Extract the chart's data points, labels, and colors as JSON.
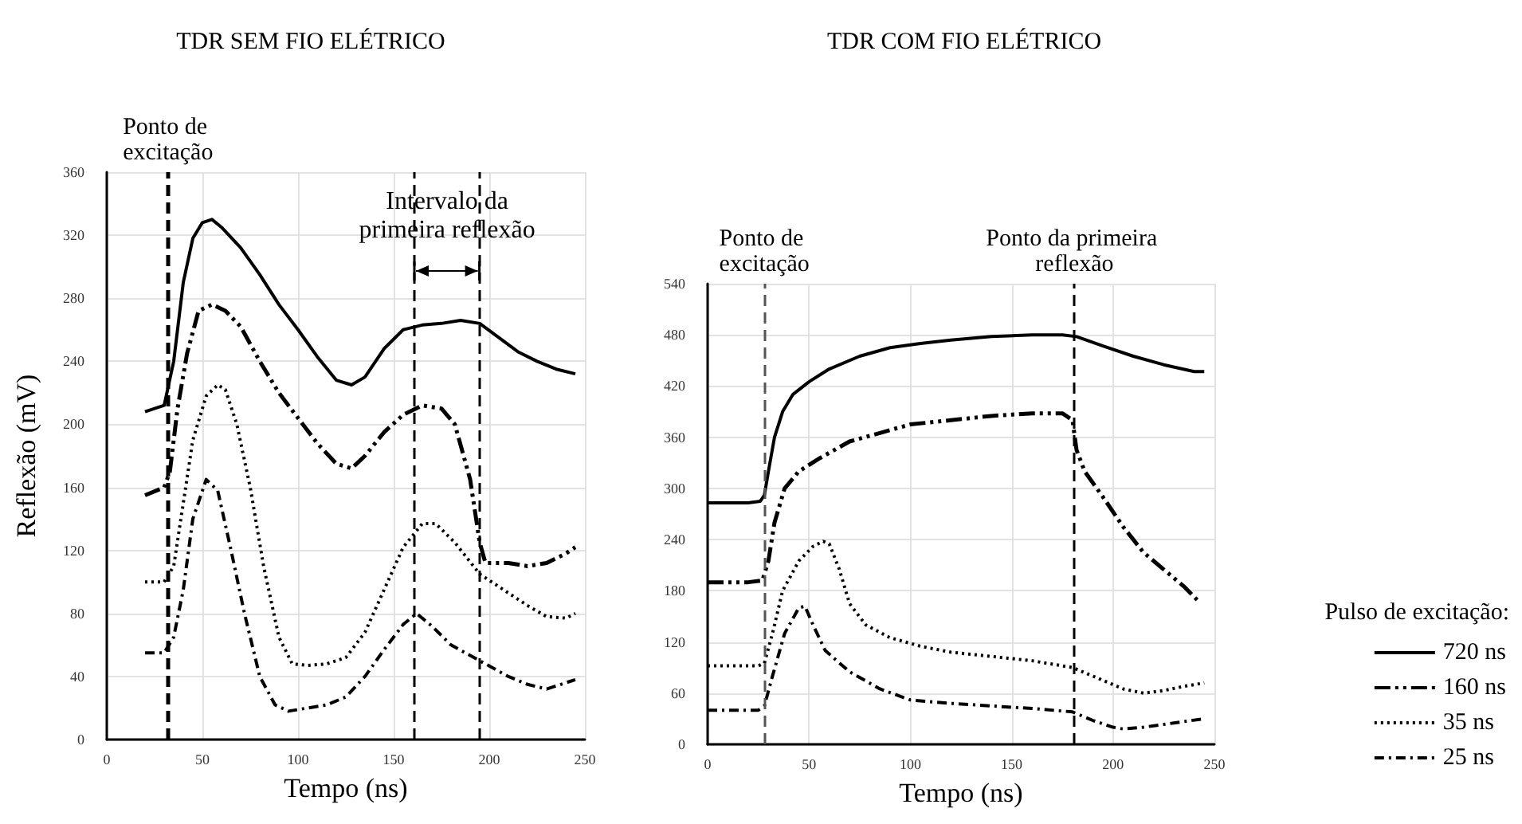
{
  "chart_data": [
    {
      "type": "line",
      "title": "TDR SEM FIO ELÉTRICO",
      "xlabel": "Tempo (ns)",
      "ylabel": "Reflexão (mV)",
      "xlim": [
        0,
        250
      ],
      "xticks": [
        0,
        50,
        100,
        150,
        200,
        250
      ],
      "ylim": [
        0,
        360
      ],
      "yticks": [
        0,
        40,
        80,
        120,
        160,
        200,
        240,
        280,
        320,
        360
      ],
      "grid": true,
      "legend": false,
      "marker": "none",
      "ref_lines": [
        {
          "axis": "x",
          "value": 32,
          "label": "Ponto de excitação",
          "color": "#000000",
          "line_style": "dashed"
        },
        {
          "axis": "x",
          "value": 161,
          "label": null,
          "color": "#000000",
          "line_style": "dashed"
        },
        {
          "axis": "x",
          "value": 195,
          "label": null,
          "color": "#000000",
          "line_style": "dashed"
        }
      ],
      "annotations": [
        "Intervalo da primeira reflexão"
      ],
      "series": [
        {
          "color": "#000000",
          "line_style": "solid",
          "x": [
            20,
            30,
            35,
            40,
            45,
            50,
            55,
            60,
            70,
            80,
            90,
            100,
            110,
            120,
            128,
            135,
            145,
            155,
            165,
            175,
            185,
            195,
            205,
            215,
            225,
            235,
            245
          ],
          "values": [
            208,
            212,
            240,
            290,
            318,
            328,
            330,
            325,
            312,
            295,
            276,
            260,
            243,
            228,
            225,
            230,
            248,
            260,
            263,
            264,
            266,
            264,
            255,
            246,
            240,
            235,
            232
          ]
        },
        {
          "color": "#000000",
          "line_style": "dashdotdot",
          "x": [
            20,
            30,
            33,
            37,
            42,
            48,
            55,
            62,
            70,
            80,
            90,
            100,
            110,
            120,
            128,
            135,
            145,
            155,
            165,
            175,
            182,
            190,
            195,
            198,
            210,
            220,
            230,
            240,
            245
          ],
          "values": [
            155,
            160,
            170,
            210,
            245,
            272,
            276,
            272,
            262,
            240,
            220,
            204,
            188,
            175,
            172,
            180,
            195,
            206,
            212,
            210,
            200,
            165,
            125,
            112,
            112,
            110,
            112,
            118,
            122
          ]
        },
        {
          "color": "#000000",
          "line_style": "dotted",
          "x": [
            20,
            30,
            35,
            40,
            45,
            52,
            58,
            62,
            68,
            75,
            82,
            90,
            97,
            105,
            115,
            125,
            135,
            145,
            155,
            165,
            172,
            182,
            195,
            210,
            220,
            230,
            240,
            245
          ],
          "values": [
            100,
            100,
            110,
            150,
            190,
            218,
            225,
            222,
            200,
            160,
            110,
            65,
            48,
            47,
            48,
            52,
            68,
            95,
            122,
            137,
            137,
            125,
            105,
            93,
            85,
            78,
            77,
            80
          ]
        },
        {
          "color": "#000000",
          "line_style": "dashdot",
          "x": [
            20,
            30,
            35,
            40,
            45,
            52,
            58,
            65,
            72,
            80,
            88,
            95,
            105,
            115,
            125,
            135,
            145,
            155,
            162,
            170,
            180,
            195,
            210,
            220,
            230,
            240,
            245
          ],
          "values": [
            55,
            55,
            65,
            95,
            140,
            165,
            158,
            120,
            80,
            40,
            22,
            18,
            20,
            22,
            27,
            40,
            57,
            73,
            80,
            72,
            60,
            50,
            40,
            35,
            32,
            36,
            38
          ]
        }
      ]
    },
    {
      "type": "line",
      "title": "TDR COM FIO ELÉTRICO",
      "xlabel": "Tempo (ns)",
      "xlim": [
        0,
        250
      ],
      "xticks": [
        0,
        50,
        100,
        150,
        200,
        250
      ],
      "ylim": [
        0,
        540
      ],
      "yticks": [
        0,
        60,
        120,
        180,
        240,
        300,
        360,
        420,
        480,
        540
      ],
      "grid": true,
      "legend": "bottom right",
      "legend_title": "Pulso de excitação:",
      "marker": "none",
      "ref_lines": [
        {
          "axis": "x",
          "value": 28,
          "label": "Ponto de excitação",
          "color": "#555555",
          "line_style": "dashed"
        },
        {
          "axis": "x",
          "value": 181,
          "label": "Ponto da primeira reflexão",
          "color": "#000000",
          "line_style": "dashed"
        }
      ],
      "series": [
        {
          "name": "720 ns",
          "color": "#000000",
          "line_style": "solid",
          "x": [
            0,
            10,
            20,
            26,
            28,
            30,
            33,
            37,
            42,
            50,
            60,
            75,
            90,
            105,
            120,
            140,
            160,
            175,
            182,
            195,
            210,
            225,
            240,
            245
          ],
          "values": [
            283,
            283,
            283,
            285,
            292,
            320,
            360,
            390,
            410,
            425,
            440,
            455,
            465,
            470,
            474,
            478,
            480,
            480,
            478,
            467,
            455,
            445,
            437,
            437
          ]
        },
        {
          "name": "160 ns",
          "color": "#000000",
          "line_style": "dashdotdot",
          "x": [
            0,
            20,
            27,
            30,
            33,
            38,
            45,
            55,
            70,
            85,
            100,
            120,
            140,
            160,
            175,
            180,
            182,
            186,
            195,
            205,
            215,
            225,
            235,
            242
          ],
          "values": [
            190,
            190,
            192,
            215,
            260,
            300,
            320,
            335,
            355,
            365,
            375,
            380,
            385,
            388,
            388,
            380,
            345,
            320,
            290,
            255,
            225,
            205,
            185,
            168
          ]
        },
        {
          "name": "35 ns",
          "color": "#000000",
          "line_style": "dotted",
          "x": [
            0,
            25,
            28,
            32,
            37,
            45,
            52,
            57,
            60,
            65,
            70,
            78,
            90,
            105,
            120,
            140,
            160,
            180,
            195,
            205,
            215,
            225,
            235,
            245
          ],
          "values": [
            92,
            92,
            95,
            130,
            180,
            215,
            232,
            238,
            235,
            205,
            165,
            140,
            125,
            115,
            108,
            103,
            98,
            90,
            75,
            65,
            60,
            63,
            68,
            72
          ]
        },
        {
          "name": "25 ns",
          "color": "#000000",
          "line_style": "dashdot",
          "x": [
            0,
            25,
            28,
            32,
            38,
            45,
            48,
            52,
            58,
            70,
            85,
            100,
            120,
            140,
            160,
            180,
            190,
            200,
            205,
            215,
            230,
            245
          ],
          "values": [
            40,
            40,
            45,
            80,
            130,
            160,
            162,
            140,
            110,
            85,
            65,
            52,
            48,
            45,
            42,
            38,
            28,
            20,
            18,
            20,
            25,
            30
          ]
        }
      ]
    }
  ]
}
